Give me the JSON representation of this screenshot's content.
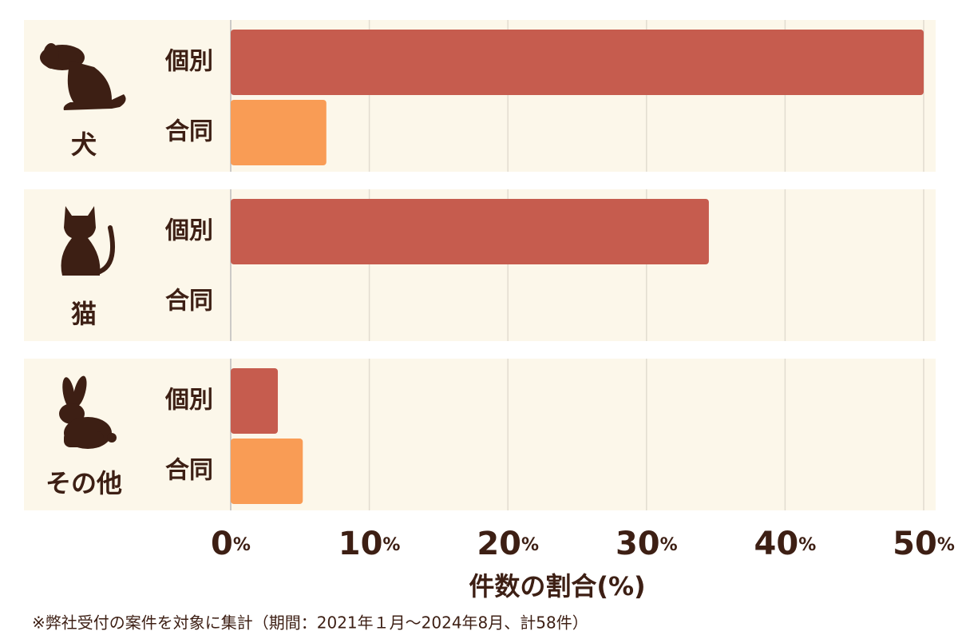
{
  "chart_data": {
    "type": "bar",
    "orientation": "horizontal",
    "categories": [
      "犬",
      "猫",
      "その他"
    ],
    "series": [
      {
        "name": "個別",
        "color": "#c65c4e",
        "values": [
          50,
          34.5,
          3.4
        ]
      },
      {
        "name": "合同",
        "color": "#f99c55",
        "values": [
          6.9,
          0,
          5.2
        ]
      }
    ],
    "xlim": [
      0,
      50
    ],
    "xticks": [
      {
        "value": 0,
        "label": "0%"
      },
      {
        "value": 10,
        "label": "10%"
      },
      {
        "value": 20,
        "label": "20%"
      },
      {
        "value": 30,
        "label": "30%"
      },
      {
        "value": 40,
        "label": "40%"
      },
      {
        "value": 50,
        "label": "50%"
      }
    ],
    "xlabel": "件数の割合(%)",
    "footnote": "※弊社受付の案件を対象に集計（期間：2021年１月～2024年8月、計58件）",
    "grid": true
  }
}
